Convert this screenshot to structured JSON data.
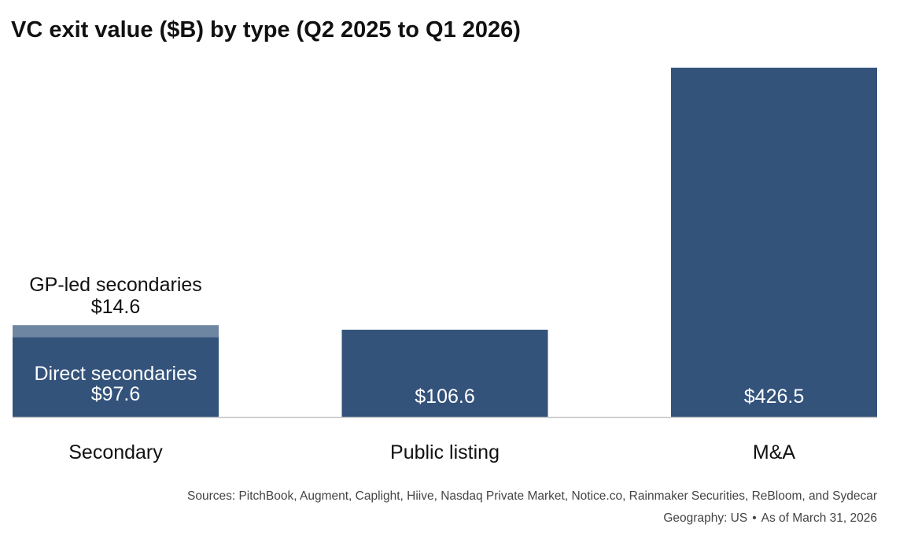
{
  "title": "VC exit value ($B) by type (Q2 2025 to Q1 2026)",
  "chart_data": {
    "type": "bar",
    "stacked": true,
    "categories": [
      "Secondary",
      "Public listing",
      "M&A"
    ],
    "ylim": [
      0,
      426.5
    ],
    "grid": false,
    "segments": [
      {
        "category": "Secondary",
        "label": "Direct secondaries",
        "value": 97.6,
        "value_label": "$97.6",
        "color": "#34537b"
      },
      {
        "category": "Secondary",
        "label": "GP-led secondaries",
        "value": 14.6,
        "value_label": "$14.6",
        "color": "#6f86a3"
      },
      {
        "category": "Public listing",
        "label": "",
        "value": 106.6,
        "value_label": "$106.6",
        "color": "#34537b"
      },
      {
        "category": "M&A",
        "label": "",
        "value": 426.5,
        "value_label": "$426.5",
        "color": "#34537b"
      }
    ]
  },
  "footer": {
    "sources": "Sources: PitchBook, Augment, Caplight, Hiive, Nasdaq Private Market, Notice.co, Rainmaker Securities, ReBloom, and Sydecar",
    "geography": "Geography: US",
    "separator": "•",
    "as_of": "As of March 31, 2026"
  }
}
